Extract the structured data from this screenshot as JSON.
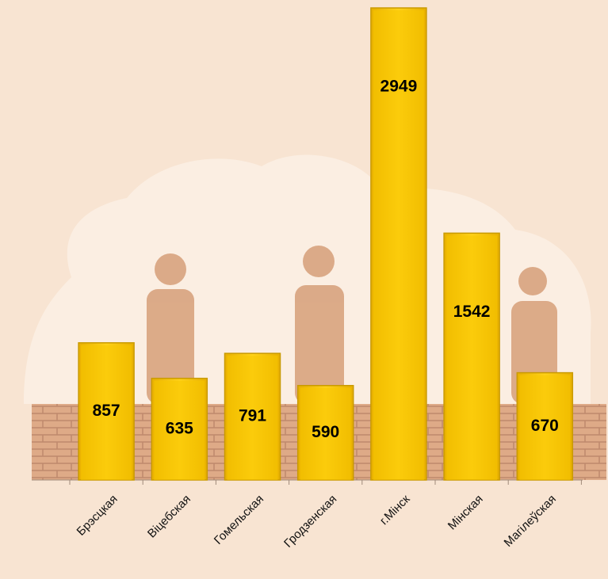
{
  "chart_data": {
    "type": "bar",
    "categories": [
      "Брэсцкая",
      "Віцебская",
      "Гомельская",
      "Гродзенская",
      "г.Мінск",
      "Мінская",
      "Магілеўская"
    ],
    "values": [
      857,
      635,
      791,
      590,
      2949,
      1542,
      670
    ],
    "color": "#f7c600"
  }
}
